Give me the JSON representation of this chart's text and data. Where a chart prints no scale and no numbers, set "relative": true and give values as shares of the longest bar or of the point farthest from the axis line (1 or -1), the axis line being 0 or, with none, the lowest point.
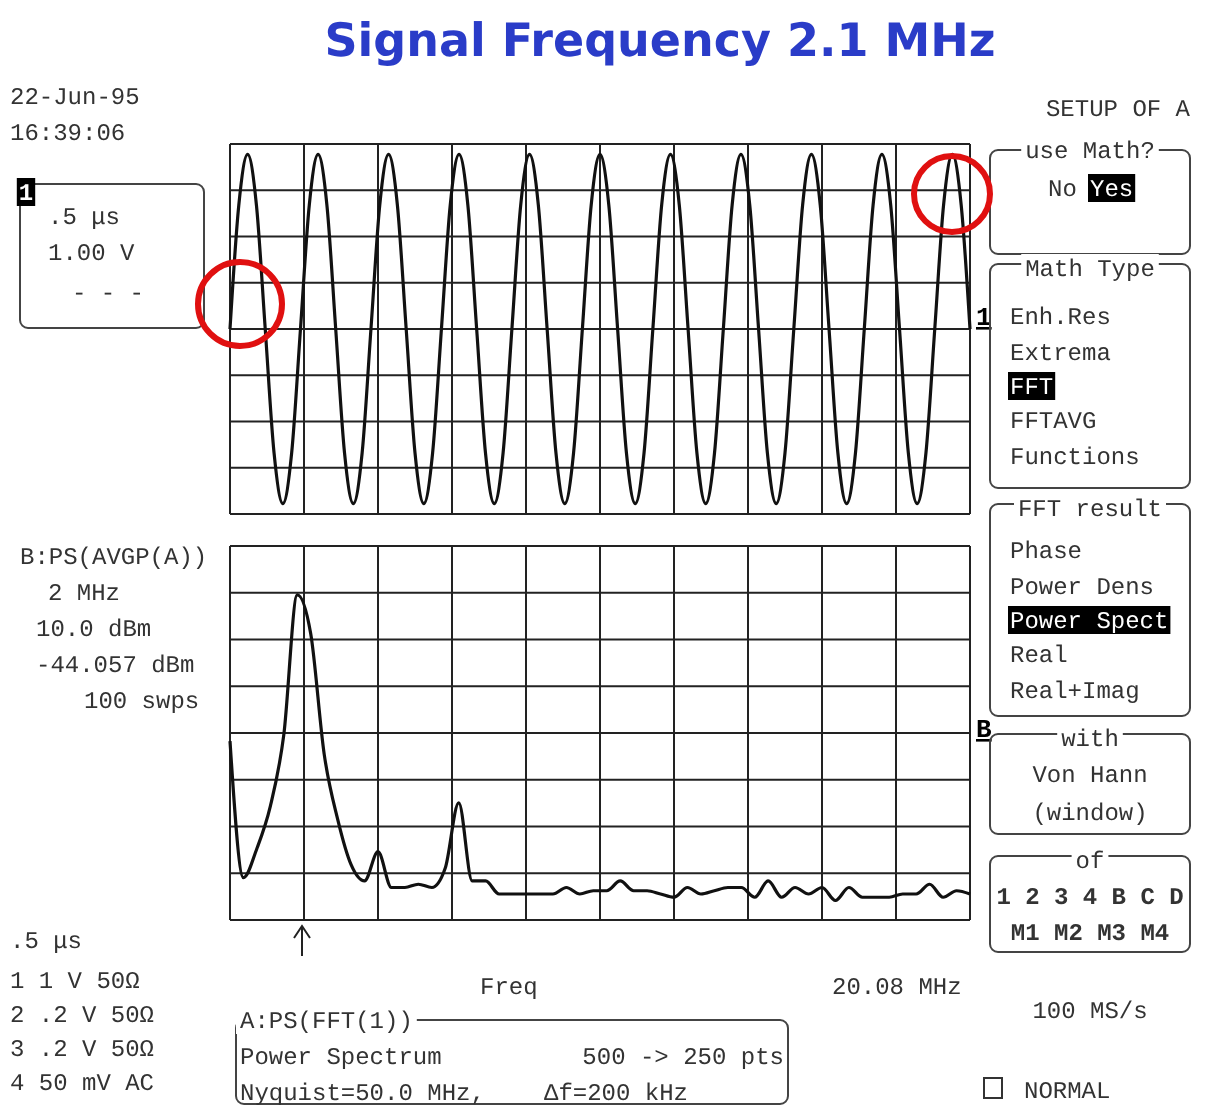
{
  "chart_data": [
    {
      "type": "line",
      "title": "Signal Frequency 2.1 MHz",
      "relative": true,
      "grid": true,
      "annotations": [
        "1"
      ],
      "categories": [
        null,
        null,
        null,
        null,
        null,
        null,
        null,
        null,
        null,
        null,
        null,
        null,
        null,
        null,
        null,
        null,
        null,
        null,
        null,
        null,
        null,
        null,
        null,
        null,
        null,
        null,
        null,
        null,
        null,
        null,
        null,
        null,
        null,
        null,
        null,
        null,
        null,
        null,
        null,
        null,
        null,
        null,
        null,
        null,
        null,
        null,
        null,
        null,
        null,
        null,
        null,
        null,
        null,
        null,
        null,
        null,
        null,
        null,
        null,
        null,
        null,
        null,
        null,
        null,
        null,
        null,
        null,
        null,
        null,
        null,
        null,
        null,
        null,
        null,
        null,
        null,
        null,
        null,
        null,
        null,
        null,
        null,
        null,
        null,
        null
      ],
      "series": [
        {
          "color": "#111111",
          "values": [
            0,
            0.71,
            1,
            0.71,
            0,
            -0.71,
            -1,
            -0.71,
            0,
            0.71,
            1,
            0.71,
            0,
            -0.71,
            -1,
            -0.71,
            0,
            0.71,
            1,
            0.71,
            0,
            -0.71,
            -1,
            -0.71,
            0,
            0.71,
            1,
            0.71,
            0,
            -0.71,
            -1,
            -0.71,
            0,
            0.71,
            1,
            0.71,
            0,
            -0.71,
            -1,
            -0.71,
            0,
            0.71,
            1,
            0.71,
            0,
            -0.71,
            -1,
            -0.71,
            0,
            0.71,
            1,
            0.71,
            0,
            -0.71,
            -1,
            -0.71,
            0,
            0.71,
            1,
            0.71,
            0,
            -0.71,
            -1,
            -0.71,
            0,
            0.71,
            1,
            0.71,
            0,
            -0.71,
            -1,
            -0.71,
            0,
            0.71,
            1,
            0.71,
            0,
            -0.71,
            -1,
            -0.71,
            0,
            0.71,
            1,
            0.71,
            0
          ]
        }
      ]
    },
    {
      "type": "line",
      "relative": true,
      "grid": true,
      "annotations": [
        "B"
      ],
      "categories": [
        null,
        null,
        null,
        null,
        null,
        null,
        null,
        null,
        null,
        null,
        null,
        null,
        null,
        null,
        null,
        null,
        null,
        null,
        null,
        null,
        null,
        null,
        null,
        null,
        null,
        null,
        null,
        null,
        null,
        null,
        null,
        null,
        null,
        null,
        null,
        null,
        null,
        null,
        null,
        null,
        null,
        null,
        null,
        null,
        null,
        null,
        null,
        null,
        null,
        null,
        null,
        null,
        null,
        null,
        null,
        null
      ],
      "series": [
        {
          "color": "#111111",
          "values": [
            0.55,
            0.13,
            0.22,
            0.35,
            0.57,
            1,
            0.88,
            0.51,
            0.31,
            0.17,
            0.12,
            0.21,
            0.1,
            0.1,
            0.11,
            0.1,
            0.16,
            0.36,
            0.12,
            0.12,
            0.08,
            0.08,
            0.08,
            0.08,
            0.08,
            0.1,
            0.08,
            0.09,
            0.09,
            0.12,
            0.09,
            0.09,
            0.08,
            0.07,
            0.1,
            0.08,
            0.09,
            0.1,
            0.1,
            0.07,
            0.12,
            0.07,
            0.1,
            0.08,
            0.1,
            0.06,
            0.1,
            0.07,
            0.07,
            0.07,
            0.08,
            0.08,
            0.11,
            0.07,
            0.09,
            0.08
          ]
        }
      ]
    },
    {
      "type": "other",
      "annotations": [
        "22-Jun-95",
        "16:39:06",
        ".5 μs",
        "1.00 V",
        "- - -",
        "B:PS(AVGP(A))",
        "2 MHz",
        "10.0 dBm",
        "-44.057 dBm",
        "100 swps",
        ".5 μs",
        "1  1 V  50Ω",
        "2 .2 V  50Ω",
        "3 .2 V  50Ω",
        "4 50 mV AC",
        "Freq",
        "20.08 MHz",
        "A:PS(FFT(1))",
        "Power Spectrum",
        "500 -> 250 pts",
        "Nyquist=50.0 MHz,",
        "Δf=200 kHz",
        "SETUP OF A",
        "use Math?",
        "No",
        "Yes",
        "Math Type",
        "Enh.Res",
        "Extrema",
        "FFT",
        "FFTAVG",
        "Functions",
        "FFT result",
        "Phase",
        "Power Dens",
        "Power Spect",
        "Real",
        "Real+Imag",
        "with",
        "Von Hann",
        "(window)",
        "of",
        "1 2 3 4 B C D",
        "M1 M2 M3 M4",
        "100 MS/s",
        "NORMAL",
        "1"
      ]
    }
  ]
}
